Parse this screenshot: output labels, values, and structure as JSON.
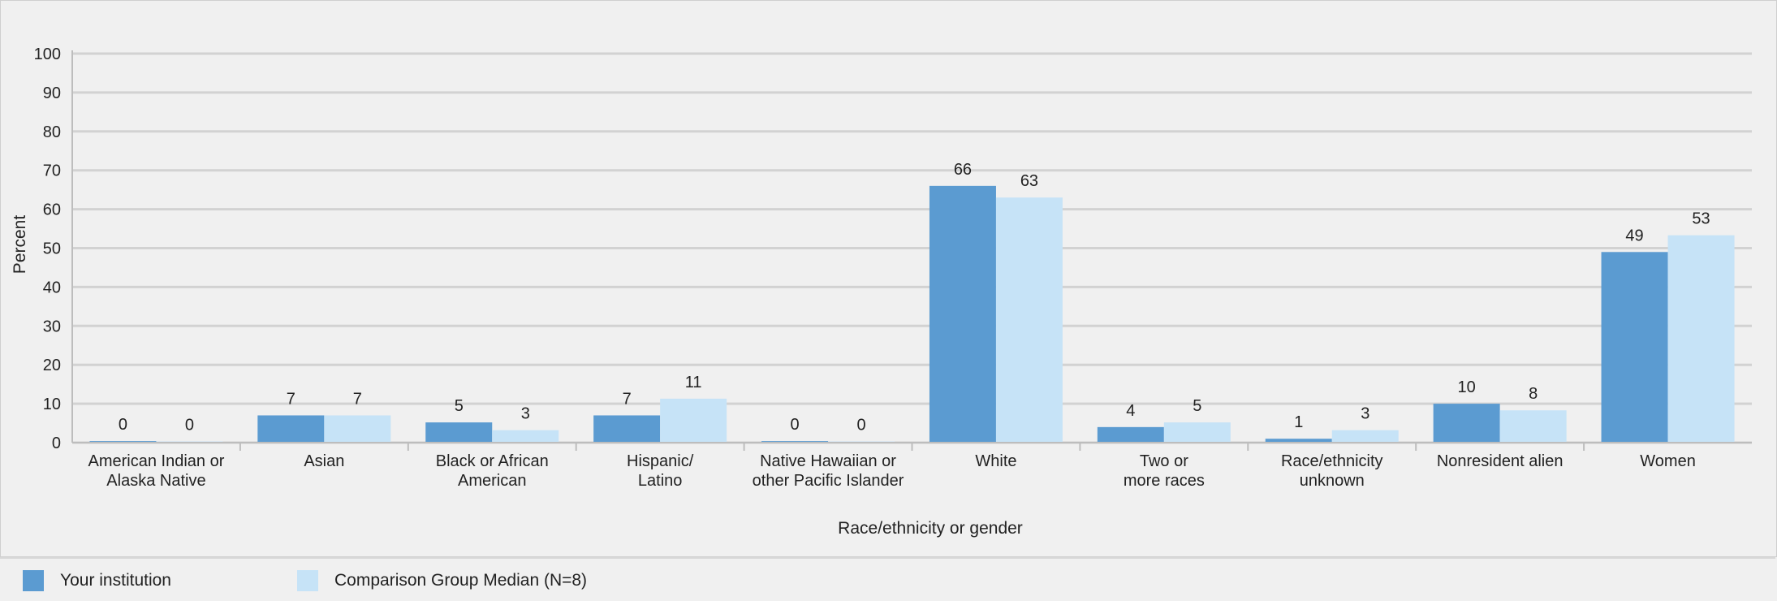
{
  "chart_data": {
    "type": "bar",
    "title": "",
    "xlabel": "Race/ethnicity or gender",
    "ylabel": "Percent",
    "ylim": [
      0,
      100
    ],
    "yticks": [
      "0",
      "10",
      "20",
      "30",
      "40",
      "50",
      "60",
      "70",
      "80",
      "90",
      "100"
    ],
    "grid": true,
    "legend_position": "bottom",
    "categories": [
      "American Indian or\nAlaska Native",
      "Asian",
      "Black or African\nAmerican",
      "Hispanic/\nLatino",
      "Native Hawaiian or\nother Pacific Islander",
      "White",
      "Two or\nmore races",
      "Race/ethnicity\nunknown",
      "Nonresident alien",
      "Women"
    ],
    "series": [
      {
        "name": "Your institution",
        "color": "#5b9bd1",
        "values": [
          0.4,
          7,
          5.2,
          7,
          0.4,
          66,
          4,
          1,
          10,
          49
        ],
        "labels": [
          "0",
          "7",
          "5",
          "7",
          "0",
          "66",
          "4",
          "1",
          "10",
          "49"
        ]
      },
      {
        "name": "Comparison Group Median (N=8)",
        "color": "#c6e3f7",
        "values": [
          0.3,
          7,
          3.2,
          11.3,
          0.3,
          63,
          5.2,
          3.2,
          8.3,
          53.3
        ],
        "labels": [
          "0",
          "7",
          "3",
          "11",
          "0",
          "63",
          "5",
          "3",
          "8",
          "53"
        ]
      }
    ]
  }
}
